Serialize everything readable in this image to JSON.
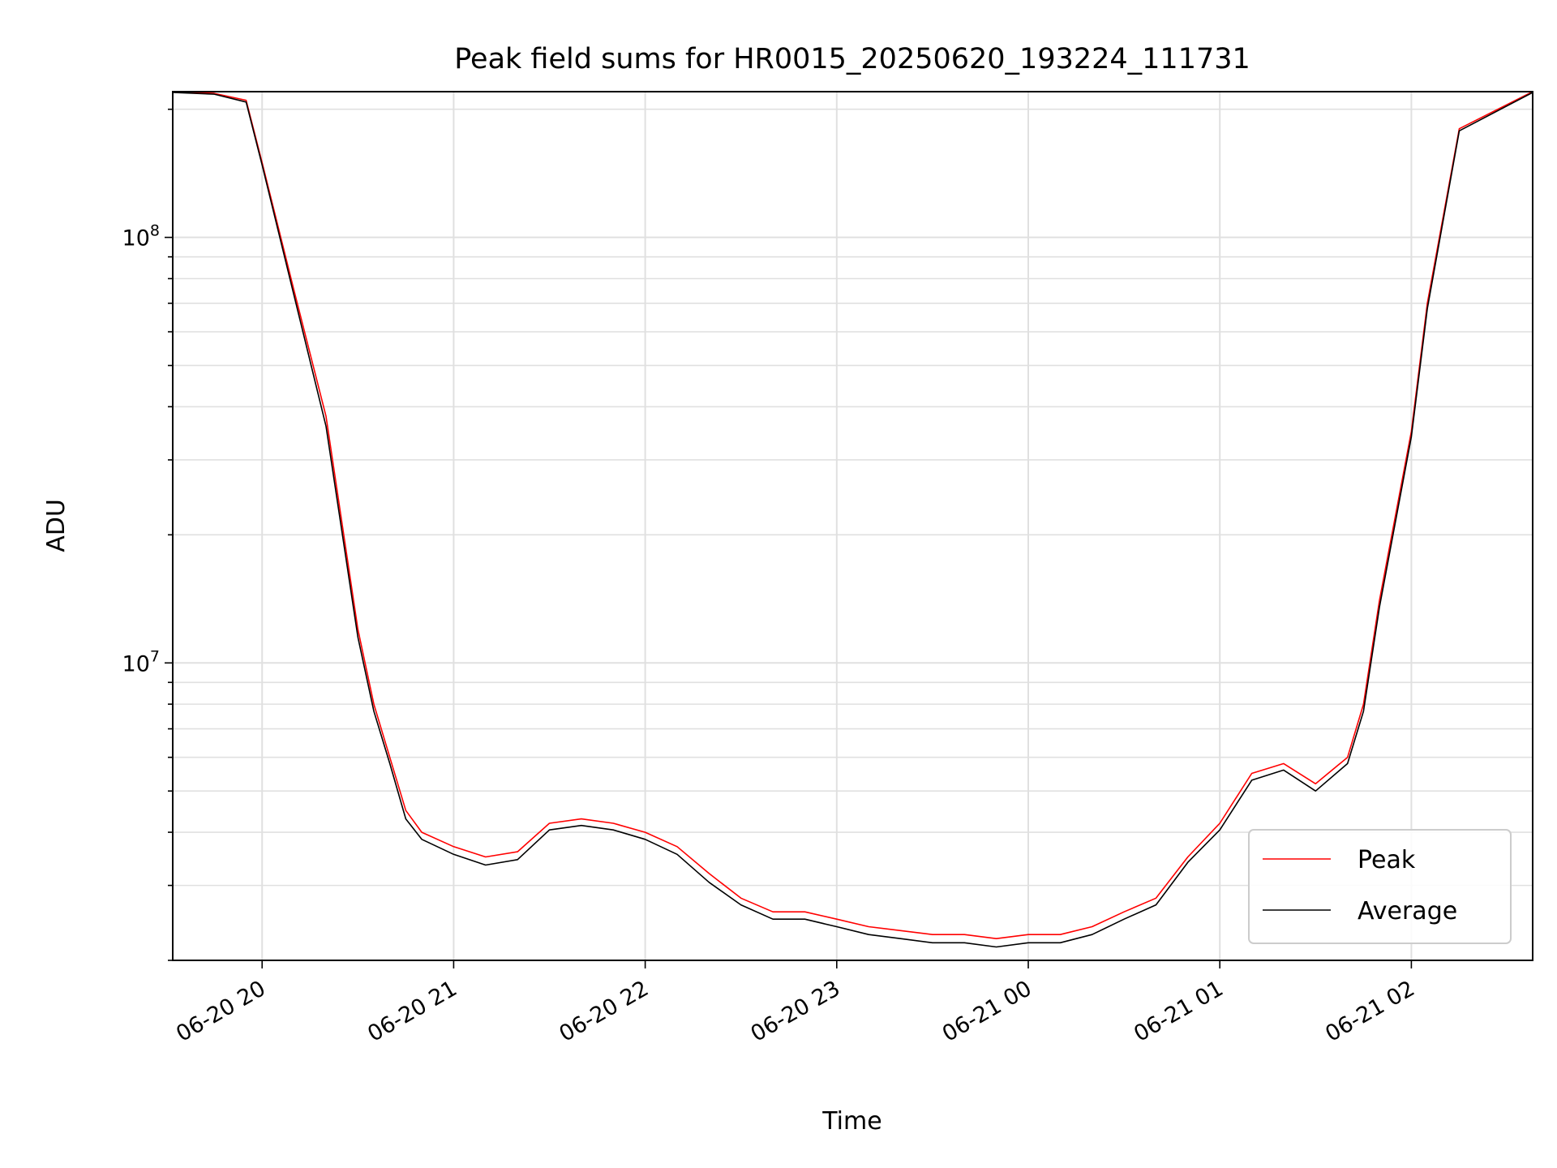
{
  "chart_data": {
    "type": "line",
    "title": "Peak field sums for HR0015_20250620_193224_111731",
    "xlabel": "Time",
    "ylabel": "ADU",
    "yscale": "log",
    "ylim": [
      2000000,
      220000000
    ],
    "xlim": [
      "06-20 19:32",
      "06-21 02:38"
    ],
    "grid": true,
    "legend_position": "lower-right",
    "x_ticks": [
      "06-20 20",
      "06-20 21",
      "06-20 22",
      "06-20 23",
      "06-21 00",
      "06-21 01",
      "06-21 02"
    ],
    "y_ticks": [
      "10^8",
      "10^7"
    ],
    "colors": {
      "Peak": "#ff0000",
      "Average": "#000000",
      "grid": "#e0e0e0"
    },
    "series": [
      {
        "name": "Peak",
        "x": [
          "06-20 19:32",
          "06-20 19:45",
          "06-20 19:55",
          "06-20 20:00",
          "06-20 20:10",
          "06-20 20:20",
          "06-20 20:30",
          "06-20 20:35",
          "06-20 20:40",
          "06-20 20:45",
          "06-20 20:50",
          "06-20 21:00",
          "06-20 21:10",
          "06-20 21:20",
          "06-20 21:30",
          "06-20 21:40",
          "06-20 21:50",
          "06-20 22:00",
          "06-20 22:10",
          "06-20 22:20",
          "06-20 22:30",
          "06-20 22:40",
          "06-20 22:50",
          "06-20 23:00",
          "06-20 23:10",
          "06-20 23:20",
          "06-20 23:30",
          "06-20 23:40",
          "06-20 23:50",
          "06-21 00:00",
          "06-21 00:10",
          "06-21 00:20",
          "06-21 00:30",
          "06-21 00:40",
          "06-21 00:50",
          "06-21 01:00",
          "06-21 01:10",
          "06-21 01:20",
          "06-21 01:30",
          "06-21 01:40",
          "06-21 01:45",
          "06-21 01:50",
          "06-21 02:00",
          "06-21 02:05",
          "06-21 02:15",
          "06-21 02:38"
        ],
        "values": [
          220000000,
          218000000,
          210000000,
          150000000,
          75000000,
          38000000,
          12000000,
          8000000,
          6000000,
          4500000,
          4000000,
          3700000,
          3500000,
          3600000,
          4200000,
          4300000,
          4200000,
          4000000,
          3700000,
          3200000,
          2800000,
          2600000,
          2600000,
          2500000,
          2400000,
          2350000,
          2300000,
          2300000,
          2250000,
          2300000,
          2300000,
          2400000,
          2600000,
          2800000,
          3500000,
          4200000,
          5500000,
          5800000,
          5200000,
          6000000,
          8000000,
          14000000,
          35000000,
          70000000,
          180000000,
          220000000
        ]
      },
      {
        "name": "Average",
        "x": [
          "06-20 19:32",
          "06-20 19:45",
          "06-20 19:55",
          "06-20 20:00",
          "06-20 20:10",
          "06-20 20:20",
          "06-20 20:30",
          "06-20 20:35",
          "06-20 20:40",
          "06-20 20:45",
          "06-20 20:50",
          "06-20 21:00",
          "06-20 21:10",
          "06-20 21:20",
          "06-20 21:30",
          "06-20 21:40",
          "06-20 21:50",
          "06-20 22:00",
          "06-20 22:10",
          "06-20 22:20",
          "06-20 22:30",
          "06-20 22:40",
          "06-20 22:50",
          "06-20 23:00",
          "06-20 23:10",
          "06-20 23:20",
          "06-20 23:30",
          "06-20 23:40",
          "06-20 23:50",
          "06-21 00:00",
          "06-21 00:10",
          "06-21 00:20",
          "06-21 00:30",
          "06-21 00:40",
          "06-21 00:50",
          "06-21 01:00",
          "06-21 01:10",
          "06-21 01:20",
          "06-21 01:30",
          "06-21 01:40",
          "06-21 01:45",
          "06-21 01:50",
          "06-21 02:00",
          "06-21 02:05",
          "06-21 02:15",
          "06-21 02:38"
        ],
        "values": [
          219000000,
          217000000,
          208000000,
          148000000,
          73000000,
          36000000,
          11500000,
          7700000,
          5800000,
          4300000,
          3850000,
          3550000,
          3350000,
          3450000,
          4050000,
          4150000,
          4050000,
          3850000,
          3550000,
          3050000,
          2700000,
          2500000,
          2500000,
          2400000,
          2300000,
          2250000,
          2200000,
          2200000,
          2150000,
          2200000,
          2200000,
          2300000,
          2500000,
          2700000,
          3400000,
          4050000,
          5300000,
          5600000,
          5000000,
          5800000,
          7700000,
          13500000,
          34000000,
          68000000,
          178000000,
          219000000
        ]
      }
    ]
  }
}
